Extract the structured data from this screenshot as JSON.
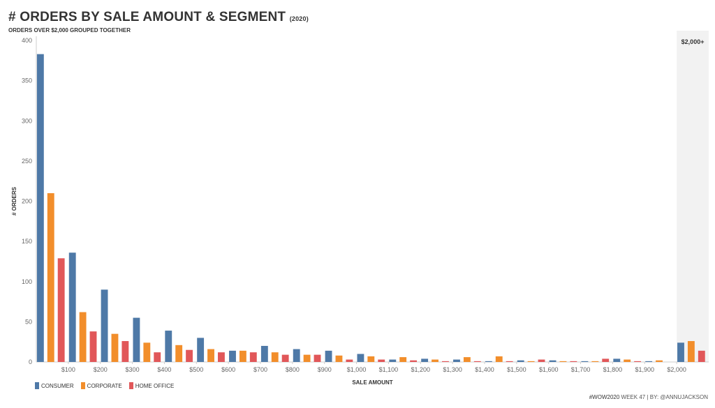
{
  "title": "# ORDERS BY SALE AMOUNT & SEGMENT",
  "title_year": "(2020)",
  "subtitle": "ORDERS OVER $2,000 GROUPED TOGETHER",
  "footer": {
    "tag": "#WOW2020",
    "rest": " WEEK 47 | BY: @ANNUJACKSON"
  },
  "colors": {
    "consumer": "#4e79a7",
    "corporate": "#f28e2b",
    "home_office": "#e15759",
    "band": "#f2f2f2",
    "axis": "#cccccc",
    "tick_text": "#666666"
  },
  "chart_data": {
    "type": "bar",
    "xlabel": "SALE AMOUNT",
    "ylabel": "# ORDERS",
    "ylim": [
      0,
      400
    ],
    "y_ticks": [
      "0",
      "50",
      "100",
      "150",
      "200",
      "250",
      "300",
      "350",
      "400"
    ],
    "y_tick_values": [
      0,
      50,
      100,
      150,
      200,
      250,
      300,
      350,
      400
    ],
    "x_tick_labels": [
      "$100",
      "$200",
      "$300",
      "$400",
      "$500",
      "$600",
      "$700",
      "$800",
      "$900",
      "$1,000",
      "$1,100",
      "$1,200",
      "$1,300",
      "$1,400",
      "$1,500",
      "$1,600",
      "$1,700",
      "$1,800",
      "$1,900",
      "$2,000"
    ],
    "bins": [
      0,
      100,
      200,
      300,
      400,
      500,
      600,
      700,
      800,
      900,
      1000,
      1100,
      1200,
      1300,
      1400,
      1500,
      1600,
      1700,
      1800,
      1900,
      2000
    ],
    "bins_note": "lower bound of each $100 bin; the $2,000 bin is $2,000+",
    "grouped_label": "$2,000+",
    "legend_position": "bottom-left",
    "series": [
      {
        "name": "CONSUMER",
        "color_key": "consumer",
        "values": [
          383,
          136,
          90,
          55,
          39,
          30,
          14,
          20,
          16,
          14,
          10,
          3,
          4,
          3,
          1,
          2,
          2,
          1,
          4,
          1,
          24
        ]
      },
      {
        "name": "CORPORATE",
        "color_key": "corporate",
        "values": [
          210,
          62,
          35,
          24,
          21,
          16,
          14,
          12,
          9,
          8,
          7,
          6,
          3,
          6,
          7,
          1,
          1,
          1,
          3,
          2,
          26
        ]
      },
      {
        "name": "HOME OFFICE",
        "color_key": "home_office",
        "values": [
          129,
          38,
          26,
          12,
          15,
          12,
          12,
          9,
          9,
          3,
          3,
          2,
          1,
          1,
          1,
          3,
          1,
          4,
          1,
          0,
          14
        ]
      }
    ]
  }
}
